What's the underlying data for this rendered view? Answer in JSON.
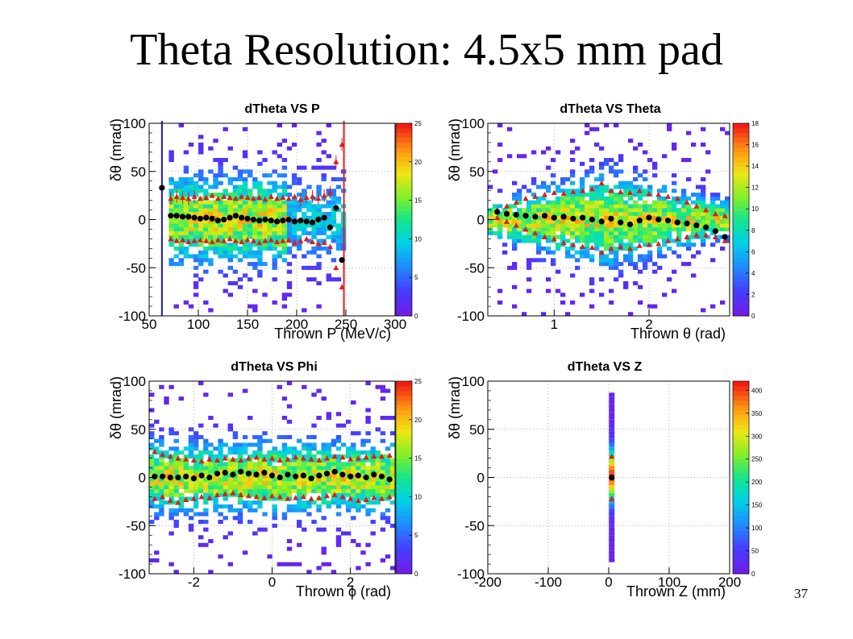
{
  "slide": {
    "title": "Theta Resolution: 4.5x5 mm pad",
    "number": "37"
  },
  "chart_data": [
    {
      "type": "heatmap",
      "title": "dTheta VS P",
      "xlabel": "Thrown P (MeV/c)",
      "ylabel": "δθ (mrad)",
      "xlim": [
        50,
        300
      ],
      "ylim": [
        -100,
        100
      ],
      "xticks": [
        "50",
        "100",
        "150",
        "200",
        "250",
        "300"
      ],
      "yticks": [
        "100",
        "50",
        "0",
        "-50",
        "-100"
      ],
      "zlim": [
        0,
        25
      ],
      "colorbar_ticks": [
        "25",
        "20",
        "15",
        "10",
        "5",
        "0"
      ],
      "grid": true,
      "profile_mean": {
        "x": [
          63,
          72,
          78,
          84,
          90,
          96,
          102,
          108,
          114,
          120,
          126,
          132,
          138,
          144,
          150,
          156,
          162,
          168,
          174,
          180,
          186,
          192,
          198,
          204,
          210,
          216,
          222,
          228,
          234,
          240,
          246
        ],
        "y": [
          33,
          4,
          4,
          3,
          3,
          2,
          1,
          2,
          1,
          -1,
          0,
          2,
          4,
          2,
          1,
          0,
          -1,
          0,
          -1,
          -2,
          -1,
          0,
          -2,
          -1,
          -2,
          -3,
          0,
          2,
          -8,
          12,
          -42
        ]
      },
      "profile_sigma_upper": {
        "x": [
          72,
          78,
          84,
          90,
          96,
          102,
          108,
          114,
          120,
          126,
          132,
          138,
          144,
          150,
          156,
          162,
          168,
          174,
          180,
          186,
          192,
          198,
          204,
          210,
          216,
          222,
          228,
          234,
          240,
          246
        ],
        "y": [
          22,
          24,
          23,
          22,
          24,
          22,
          23,
          25,
          22,
          24,
          23,
          22,
          24,
          23,
          22,
          23,
          21,
          24,
          22,
          23,
          22,
          24,
          21,
          23,
          24,
          22,
          25,
          28,
          60,
          78
        ]
      },
      "profile_sigma_lower": {
        "x": [
          72,
          78,
          84,
          90,
          96,
          102,
          108,
          114,
          120,
          126,
          132,
          138,
          144,
          150,
          156,
          162,
          168,
          174,
          180,
          186,
          192,
          198,
          204,
          210,
          216,
          222,
          228,
          234,
          240,
          246
        ],
        "y": [
          -20,
          -22,
          -21,
          -23,
          -22,
          -21,
          -22,
          -23,
          -21,
          -22,
          -20,
          -22,
          -23,
          -21,
          -22,
          -24,
          -22,
          -21,
          -23,
          -22,
          -21,
          -24,
          -22,
          -20,
          -23,
          -25,
          -24,
          -28,
          -50,
          -70
        ]
      }
    },
    {
      "type": "heatmap",
      "title": "dTheta VS Theta",
      "xlabel": "Thrown θ (rad)",
      "ylabel": "δθ (mrad)",
      "xlim": [
        0.3,
        2.85
      ],
      "ylim": [
        -100,
        100
      ],
      "xticks": [
        "1",
        "2"
      ],
      "yticks": [
        "100",
        "50",
        "0",
        "-50",
        "-100"
      ],
      "zlim": [
        0,
        18
      ],
      "colorbar_ticks": [
        "18",
        "16",
        "14",
        "12",
        "10",
        "8",
        "6",
        "4",
        "2",
        "0"
      ],
      "grid": true,
      "profile_mean": {
        "x": [
          0.4,
          0.5,
          0.6,
          0.7,
          0.8,
          0.9,
          1.0,
          1.1,
          1.2,
          1.3,
          1.4,
          1.5,
          1.6,
          1.7,
          1.8,
          1.9,
          2.0,
          2.1,
          2.2,
          2.3,
          2.4,
          2.5,
          2.6,
          2.7,
          2.8
        ],
        "y": [
          8,
          6,
          5,
          4,
          3,
          4,
          2,
          3,
          1,
          2,
          0,
          -2,
          1,
          -3,
          -5,
          -1,
          2,
          0,
          -1,
          -3,
          -4,
          -6,
          -8,
          -12,
          -18
        ]
      },
      "profile_sigma_upper": {
        "x": [
          0.4,
          0.5,
          0.6,
          0.7,
          0.8,
          0.9,
          1.0,
          1.1,
          1.2,
          1.3,
          1.4,
          1.5,
          1.6,
          1.7,
          1.8,
          1.9,
          2.0,
          2.1,
          2.2,
          2.3,
          2.4,
          2.5,
          2.6,
          2.7,
          2.8
        ],
        "y": [
          10,
          14,
          18,
          22,
          24,
          26,
          28,
          27,
          29,
          30,
          32,
          38,
          30,
          29,
          28,
          30,
          27,
          26,
          24,
          22,
          18,
          14,
          10,
          6,
          4
        ]
      },
      "profile_sigma_lower": {
        "x": [
          0.4,
          0.5,
          0.6,
          0.7,
          0.8,
          0.9,
          1.0,
          1.1,
          1.2,
          1.3,
          1.4,
          1.5,
          1.6,
          1.7,
          1.8,
          1.9,
          2.0,
          2.1,
          2.2,
          2.3,
          2.4,
          2.5,
          2.6,
          2.7,
          2.8
        ],
        "y": [
          2,
          -2,
          -6,
          -10,
          -14,
          -18,
          -20,
          -24,
          -26,
          -28,
          -29,
          -34,
          -30,
          -28,
          -30,
          -27,
          -26,
          -25,
          -22,
          -20,
          -18,
          -16,
          -16,
          -18,
          -22
        ]
      }
    },
    {
      "type": "heatmap",
      "title": "dTheta VS Phi",
      "xlabel": "Thrown ϕ (rad)",
      "ylabel": "δθ (mrad)",
      "xlim": [
        -3.14,
        3.14
      ],
      "ylim": [
        -100,
        100
      ],
      "xticks": [
        "-2",
        "0",
        "2"
      ],
      "yticks": [
        "100",
        "50",
        "0",
        "-50",
        "-100"
      ],
      "zlim": [
        0,
        25
      ],
      "colorbar_ticks": [
        "25",
        "20",
        "15",
        "10",
        "5",
        "0"
      ],
      "grid": true,
      "profile_mean": {
        "x": [
          -3.0,
          -2.8,
          -2.6,
          -2.4,
          -2.2,
          -2.0,
          -1.8,
          -1.6,
          -1.4,
          -1.2,
          -1.0,
          -0.8,
          -0.6,
          -0.4,
          -0.2,
          0.0,
          0.2,
          0.4,
          0.6,
          0.8,
          1.0,
          1.2,
          1.4,
          1.6,
          1.8,
          2.0,
          2.2,
          2.4,
          2.6,
          2.8,
          3.0
        ],
        "y": [
          1,
          1,
          0,
          0,
          1,
          -1,
          2,
          0,
          4,
          5,
          3,
          6,
          4,
          3,
          5,
          2,
          0,
          3,
          1,
          2,
          -1,
          2,
          4,
          6,
          3,
          1,
          2,
          0,
          3,
          1,
          -2
        ]
      },
      "profile_sigma_upper": {
        "x": [
          -3.0,
          -2.8,
          -2.6,
          -2.4,
          -2.2,
          -2.0,
          -1.8,
          -1.6,
          -1.4,
          -1.2,
          -1.0,
          -0.8,
          -0.6,
          -0.4,
          -0.2,
          0.0,
          0.2,
          0.4,
          0.6,
          0.8,
          1.0,
          1.2,
          1.4,
          1.6,
          1.8,
          2.0,
          2.2,
          2.4,
          2.6,
          2.8,
          3.0
        ],
        "y": [
          27,
          24,
          22,
          20,
          19,
          18,
          17,
          19,
          18,
          20,
          19,
          18,
          20,
          21,
          19,
          20,
          18,
          19,
          21,
          20,
          19,
          18,
          20,
          22,
          21,
          19,
          20,
          21,
          22,
          22,
          23
        ]
      },
      "profile_sigma_lower": {
        "x": [
          -3.0,
          -2.8,
          -2.6,
          -2.4,
          -2.2,
          -2.0,
          -1.8,
          -1.6,
          -1.4,
          -1.2,
          -1.0,
          -0.8,
          -0.6,
          -0.4,
          -0.2,
          0.0,
          0.2,
          0.4,
          0.6,
          0.8,
          1.0,
          1.2,
          1.4,
          1.6,
          1.8,
          2.0,
          2.2,
          2.4,
          2.6,
          2.8,
          3.0
        ],
        "y": [
          -22,
          -20,
          -24,
          -26,
          -23,
          -22,
          -20,
          -21,
          -18,
          -17,
          -16,
          -18,
          -19,
          -20,
          -21,
          -19,
          -20,
          -22,
          -21,
          -20,
          -22,
          -21,
          -19,
          -18,
          -20,
          -22,
          -24,
          -23,
          -21,
          -22,
          -20
        ]
      }
    },
    {
      "type": "heatmap",
      "title": "dTheta VS Z",
      "xlabel": "Thrown Z (mm)",
      "ylabel": "δθ (mrad)",
      "xlim": [
        -200,
        200
      ],
      "ylim": [
        -100,
        100
      ],
      "xticks": [
        "-200",
        "-100",
        "0",
        "100",
        "200"
      ],
      "yticks": [
        "100",
        "50",
        "0",
        "-50",
        "-100"
      ],
      "zlim": [
        0,
        420
      ],
      "colorbar_ticks": [
        "400",
        "350",
        "300",
        "250",
        "200",
        "150",
        "100",
        "50",
        "0"
      ],
      "grid": true,
      "profile_mean": {
        "x": [
          5
        ],
        "y": [
          0
        ]
      },
      "profile_sigma_upper": {
        "x": [
          5
        ],
        "y": [
          22
        ]
      },
      "profile_sigma_lower": {
        "x": [
          5
        ],
        "y": [
          -22
        ]
      }
    }
  ]
}
